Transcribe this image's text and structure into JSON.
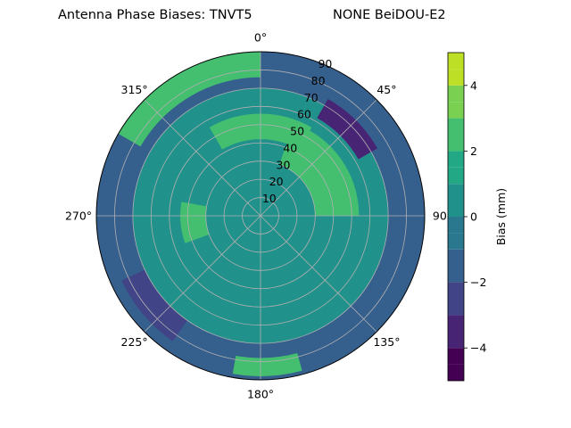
{
  "chart_data": {
    "type": "polar-contour",
    "title": "Antenna Phase Biases: TNVT5",
    "subtitle": "NONE BeiDOU-E2",
    "angle_ticks": [
      {
        "deg": 0,
        "label": "0°"
      },
      {
        "deg": 45,
        "label": "45°"
      },
      {
        "deg": 90,
        "label": "90°"
      },
      {
        "deg": 135,
        "label": "135°"
      },
      {
        "deg": 180,
        "label": "180°"
      },
      {
        "deg": 225,
        "label": "225°"
      },
      {
        "deg": 270,
        "label": "270°"
      },
      {
        "deg": 315,
        "label": "315°"
      }
    ],
    "radial_ticks": [
      10,
      20,
      30,
      40,
      50,
      60,
      70,
      80,
      90
    ],
    "radial_range": [
      0,
      90
    ],
    "grid": true,
    "colorbar": {
      "label": "Bias (mm)",
      "range": [
        -5,
        5
      ],
      "ticks": [
        -4,
        -2,
        0,
        2,
        4
      ],
      "levels": [
        -5,
        -4.5,
        -4,
        -3,
        -2.5,
        -2,
        -1,
        -0.5,
        0,
        1,
        1.5,
        2,
        3,
        3.5,
        4,
        4.5,
        5
      ],
      "colors": [
        "#440154",
        "#472a7a",
        "#3b518b",
        "#2c718e",
        "#21908d",
        "#27ad81",
        "#5cc863",
        "#aadc32",
        "#fde725"
      ]
    },
    "approx_regions": [
      {
        "name": "outer ring",
        "bias": -1.2
      },
      {
        "name": "mid ring",
        "bias": 0.6
      },
      {
        "name": "inner ring",
        "bias": 0.6
      },
      {
        "name": "north high ring",
        "bias": 2.3
      },
      {
        "name": "east patch",
        "bias": 2.3
      },
      {
        "name": "west patch",
        "bias": 2.3
      },
      {
        "name": "northeast low",
        "bias": -3.2
      },
      {
        "name": "southwest low",
        "bias": -2.7
      }
    ]
  }
}
